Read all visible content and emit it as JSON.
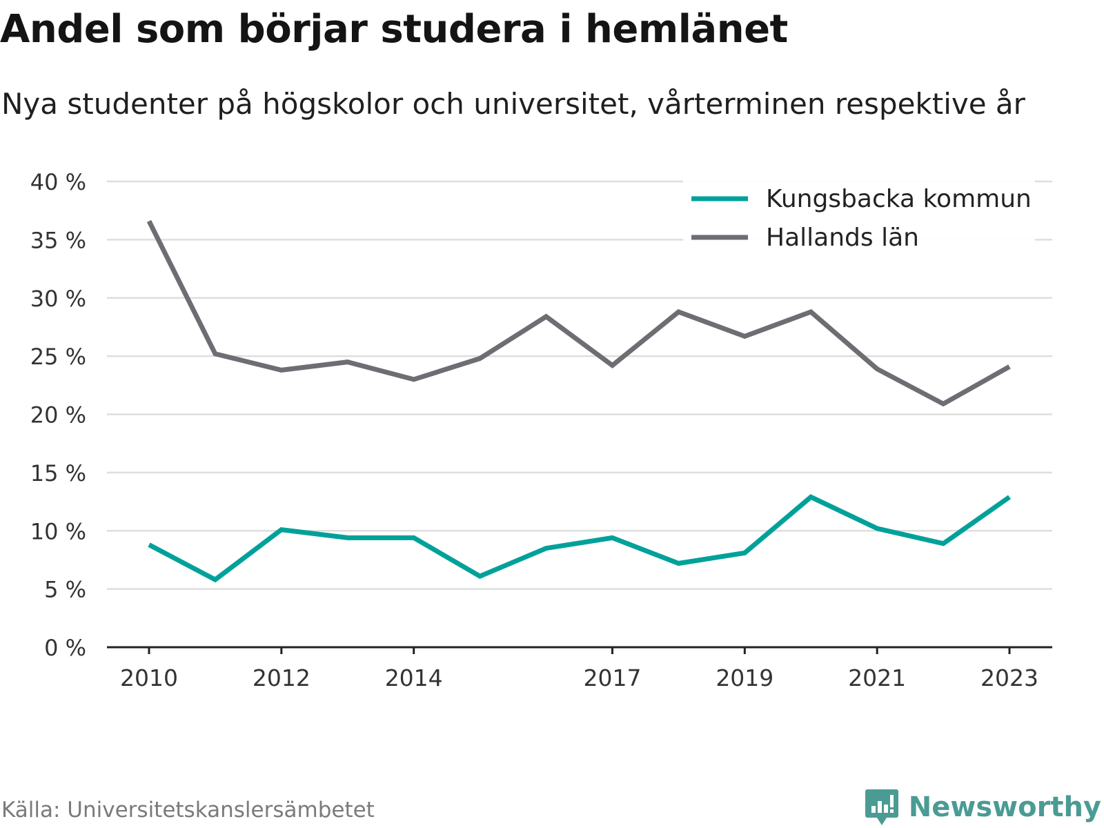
{
  "title": "Andel som börjar studera i hemlänet",
  "subtitle": "Nya studenter på högskolor och universitet, vårterminen respektive år",
  "source": "Källa: Universitetskanslersämbetet",
  "brand": {
    "name": "Newsworthy",
    "logo_icon": "chart-speech-bubble-icon",
    "color": "#4a9b94"
  },
  "chart_data": {
    "type": "line",
    "x": [
      2010,
      2011,
      2012,
      2013,
      2014,
      2015,
      2016,
      2017,
      2018,
      2019,
      2020,
      2021,
      2022,
      2023
    ],
    "x_tick_labels": [
      "2010",
      "2012",
      "2014",
      "2017",
      "2019",
      "2021",
      "2023"
    ],
    "x_tick_values": [
      2010,
      2012,
      2014,
      2017,
      2019,
      2021,
      2023
    ],
    "ylim": [
      0,
      40
    ],
    "y_ticks": [
      0,
      5,
      10,
      15,
      20,
      25,
      30,
      35,
      40
    ],
    "y_tick_labels": [
      "0 %",
      "5 %",
      "10 %",
      "15 %",
      "20 %",
      "25 %",
      "30 %",
      "35 %",
      "40 %"
    ],
    "grid": true,
    "legend_position": "top-right",
    "series": [
      {
        "name": "Kungsbacka kommun",
        "color": "#00a19a",
        "values": [
          8.8,
          5.8,
          10.1,
          9.4,
          9.4,
          6.1,
          8.5,
          9.4,
          7.2,
          8.1,
          12.9,
          10.2,
          8.9,
          12.9
        ]
      },
      {
        "name": "Hallands län",
        "color": "#6e6d73",
        "values": [
          36.6,
          25.2,
          23.8,
          24.5,
          23.0,
          24.8,
          28.4,
          24.2,
          28.8,
          26.7,
          28.8,
          23.9,
          20.9,
          24.1
        ]
      }
    ]
  }
}
